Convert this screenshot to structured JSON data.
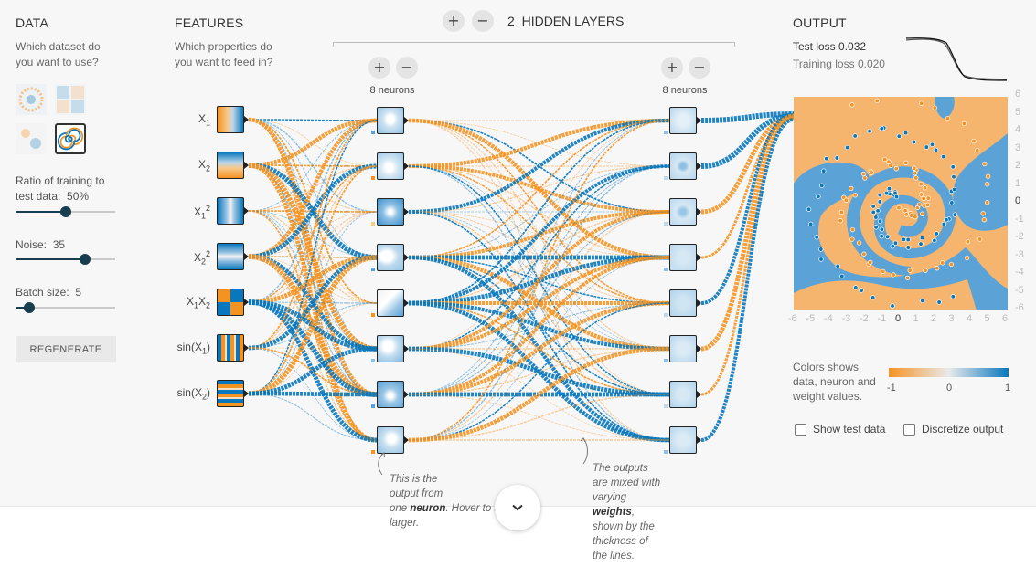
{
  "data_section": {
    "title": "DATA",
    "question_line1": "Which dataset do",
    "question_line2": "you want to use?",
    "datasets": [
      "circle-dataset-icon",
      "xor-dataset-icon",
      "gaussian-dataset-icon",
      "spiral-dataset-icon"
    ],
    "selected_dataset": "spiral",
    "ratio_label_line1": "Ratio of training to",
    "ratio_label_line2": "test data:",
    "ratio_value": "50%",
    "ratio_fraction": 0.5,
    "noise_label": "Noise:",
    "noise_value": "35",
    "noise_fraction": 0.7,
    "batch_label": "Batch size:",
    "batch_value": "5",
    "batch_fraction": 0.14,
    "regenerate_label": "REGENERATE"
  },
  "features_section": {
    "title": "FEATURES",
    "question_line1": "Which properties do",
    "question_line2": "you want to feed in?",
    "features": [
      {
        "base": "X",
        "sub": "1",
        "sup": "",
        "tail": ""
      },
      {
        "base": "X",
        "sub": "2",
        "sup": "",
        "tail": ""
      },
      {
        "base": "X",
        "sub": "1",
        "sup": "2",
        "tail": ""
      },
      {
        "base": "X",
        "sub": "2",
        "sup": "2",
        "tail": ""
      },
      {
        "base": "X",
        "sub": "1",
        "sup": "",
        "tail": "X"
      },
      {
        "base": "sin(X",
        "sub": "1",
        "sup": "",
        "tail": ")"
      },
      {
        "base": "sin(X",
        "sub": "2",
        "sup": "",
        "tail": ")"
      }
    ]
  },
  "hidden_layers": {
    "count": "2",
    "label": "HIDDEN LAYERS",
    "plus": "+",
    "minus": "−",
    "layer1_neurons": "8 neurons",
    "layer2_neurons": "8 neurons"
  },
  "output_section": {
    "title": "OUTPUT",
    "test_loss_label": "Test loss",
    "test_loss_value": "0.032",
    "training_loss_label": "Training loss",
    "training_loss_value": "0.020",
    "x_ticks": [
      "-6",
      "-5",
      "-4",
      "-3",
      "-2",
      "-1",
      "0",
      "1",
      "2",
      "3",
      "4",
      "5",
      "6"
    ],
    "y_ticks": [
      "6",
      "5",
      "4",
      "3",
      "2",
      "1",
      "0",
      "-1",
      "-2",
      "-3",
      "-4",
      "-5",
      "-6"
    ],
    "legend_line1": "Colors shows",
    "legend_line2": "data, neuron and",
    "legend_line3": "weight values.",
    "legend_ticks": [
      "-1",
      "0",
      "1"
    ],
    "show_test_data": "Show test data",
    "discretize_output": "Discretize output"
  },
  "notes": {
    "neuron_note_1": "This is the",
    "neuron_note_2": "output from",
    "neuron_note_3": "one ",
    "neuron_note_bold": "neuron",
    "neuron_note_4": ". Hover to see it",
    "neuron_note_5": "larger.",
    "weights_note_1": "The outputs",
    "weights_note_2": "are mixed with",
    "weights_note_3": "varying",
    "weights_note_bold": "weights",
    "weights_note_4": ",",
    "weights_note_5": "shown by the",
    "weights_note_6": "thickness of",
    "weights_note_7": "the lines."
  },
  "colors": {
    "orange": "#f59322",
    "blue": "#0877bd",
    "dark": "#183d4e"
  }
}
